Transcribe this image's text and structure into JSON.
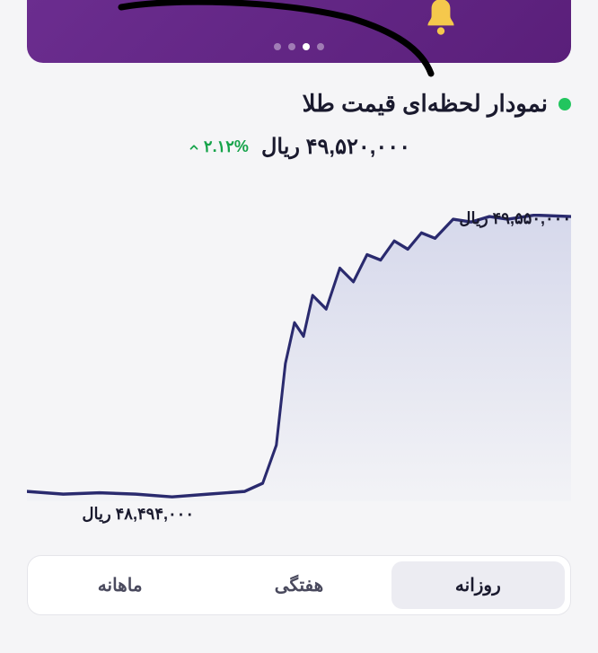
{
  "banner": {
    "dots_count": 4,
    "active_dot": 1,
    "bg_gradient_from": "#6b2d8f",
    "bg_gradient_to": "#5a1f7a"
  },
  "header": {
    "title": "نمودار لحظه‌ای قیمت طلا",
    "indicator_color": "#22c55e"
  },
  "price": {
    "current": "۴۹,۵۲۰,۰۰۰ ریال",
    "change_pct": "۲.۱۲%",
    "change_color": "#16a34a",
    "direction": "up"
  },
  "chart": {
    "type": "area",
    "max_label": "۴۹,۵۵۰,۰۰۰ ریال",
    "min_label": "۴۸,۴۹۴,۰۰۰ ریال",
    "line_color": "#2a2a6e",
    "line_width": 3,
    "fill_from": "rgba(120,130,200,0.25)",
    "fill_to": "rgba(120,130,200,0.02)",
    "background": "#f5f5f7",
    "xlim": [
      0,
      600
    ],
    "ylim": [
      48494000,
      49550000
    ],
    "points": [
      [
        0,
        48530000
      ],
      [
        40,
        48520000
      ],
      [
        80,
        48525000
      ],
      [
        120,
        48520000
      ],
      [
        160,
        48510000
      ],
      [
        200,
        48520000
      ],
      [
        240,
        48530000
      ],
      [
        260,
        48560000
      ],
      [
        275,
        48700000
      ],
      [
        285,
        49000000
      ],
      [
        295,
        49150000
      ],
      [
        305,
        49100000
      ],
      [
        315,
        49250000
      ],
      [
        330,
        49200000
      ],
      [
        345,
        49350000
      ],
      [
        360,
        49300000
      ],
      [
        375,
        49400000
      ],
      [
        390,
        49380000
      ],
      [
        405,
        49450000
      ],
      [
        420,
        49420000
      ],
      [
        435,
        49480000
      ],
      [
        450,
        49460000
      ],
      [
        470,
        49530000
      ],
      [
        490,
        49520000
      ],
      [
        510,
        49540000
      ],
      [
        530,
        49530000
      ],
      [
        560,
        49545000
      ],
      [
        600,
        49540000
      ]
    ]
  },
  "tabs": {
    "items": [
      {
        "id": "daily",
        "label": "روزانه",
        "active": true
      },
      {
        "id": "weekly",
        "label": "هفتگی",
        "active": false
      },
      {
        "id": "monthly",
        "label": "ماهانه",
        "active": false
      }
    ]
  }
}
